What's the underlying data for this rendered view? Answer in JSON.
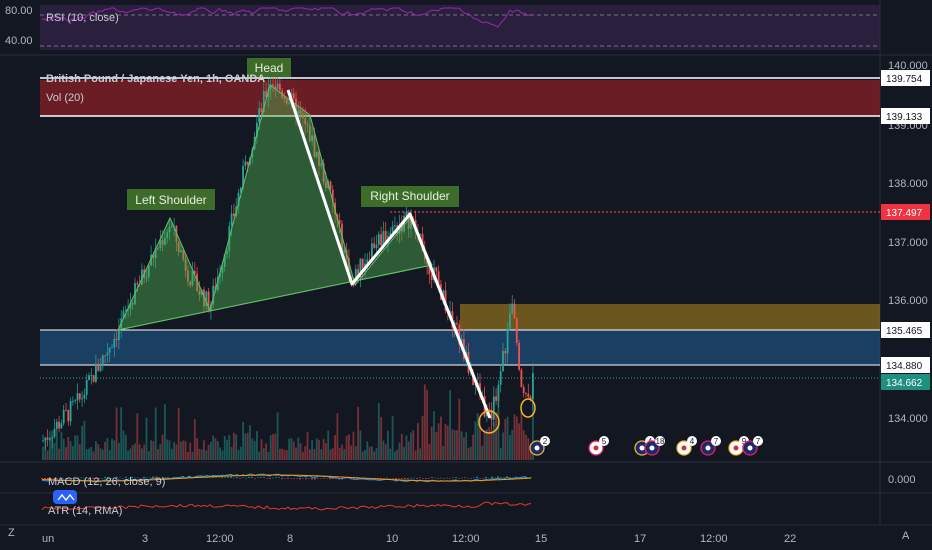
{
  "rsi": {
    "label": "RSI (10, close)",
    "levels": [
      "80.00",
      "40.00"
    ]
  },
  "main": {
    "title": "British Pound / Japanese Yen, 1h, OANDA",
    "vol_label": "Vol (20)"
  },
  "macd": {
    "label": "MACD (12, 26, close, 9)",
    "axis_label": "0.000"
  },
  "atr": {
    "label": "ATR (14, RMA)"
  },
  "price_axis": {
    "ticks": [
      "140.000",
      "139.000",
      "138.000",
      "137.000",
      "136.000",
      "134.000"
    ],
    "tags": [
      {
        "label": "139.754",
        "style": "white"
      },
      {
        "label": "139.133",
        "style": "white"
      },
      {
        "label": "137.497",
        "style": "red"
      },
      {
        "label": "135.465",
        "style": "white"
      },
      {
        "label": "134.880",
        "style": "white"
      },
      {
        "label": "134.662",
        "style": "teal"
      }
    ]
  },
  "time_axis": {
    "ticks": [
      "un",
      "3",
      "12:00",
      "8",
      "10",
      "12:00",
      "15",
      "17",
      "12:00",
      "22"
    ]
  },
  "annotations": {
    "head": "Head",
    "left_shoulder": "Left Shoulder",
    "right_shoulder": "Right Shoulder"
  },
  "events": [
    "2",
    "5",
    "4",
    "18",
    "4",
    "7",
    "9",
    "7"
  ],
  "bottom_icons": [
    "Z",
    "A"
  ],
  "colors": {
    "background": "#131722",
    "up": "#26a69a",
    "down": "#ef5350",
    "pattern_fill": "#4caf50",
    "support_zone": "#1f4e7a",
    "resistance_zone": "#b8860b",
    "volume_band": "#7a1f26",
    "rsi": "#9c27b0"
  },
  "chart_data": {
    "type": "candlestick",
    "symbol": "British Pound / Japanese Yen",
    "interval": "1h",
    "ylim": [
      133.5,
      140.2
    ],
    "x_ticks": [
      "un",
      "3",
      "12:00",
      "8",
      "10",
      "12:00",
      "15",
      "17",
      "12:00",
      "22"
    ],
    "pattern": "head and shoulders",
    "pattern_points": [
      {
        "label": "Left Shoulder",
        "price": 137.4
      },
      {
        "label": "Head",
        "price": 139.75
      },
      {
        "label": "Right Shoulder",
        "price": 137.45
      }
    ],
    "neckline": [
      135.5,
      136.5
    ],
    "zigzag_prices": [
      139.7,
      136.3,
      137.45,
      133.95
    ],
    "levels": [
      139.754,
      139.133,
      137.497,
      135.465,
      134.88,
      134.662
    ],
    "zones": [
      {
        "name": "support",
        "from": 134.88,
        "to": 135.465
      },
      {
        "name": "resistance",
        "from": 135.465,
        "to": 135.9
      }
    ],
    "rsi": {
      "levels": [
        80,
        40
      ]
    },
    "macd": {
      "zero": 0.0
    }
  }
}
